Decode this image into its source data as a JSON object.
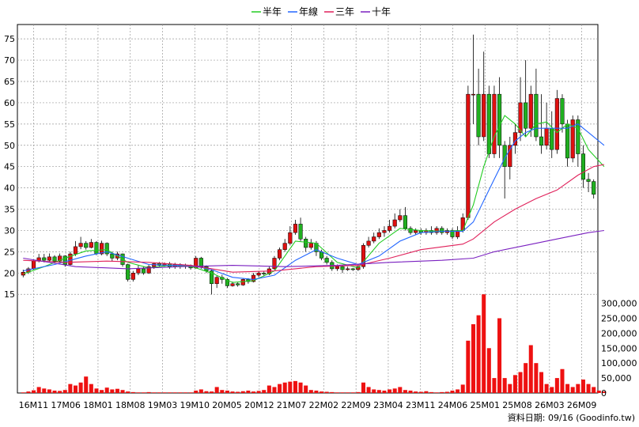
{
  "legend": [
    {
      "label": "半年",
      "color": "#22cc22"
    },
    {
      "label": "年線",
      "color": "#2266ff"
    },
    {
      "label": "三年",
      "color": "#e0205a"
    },
    {
      "label": "十年",
      "color": "#7a20c0"
    }
  ],
  "footer": "資料日期: 09/16  (Goodinfo.tw)",
  "chart_data": {
    "type": "candlestick",
    "x_ticks": [
      "16M11",
      "17M06",
      "18M01",
      "18M08",
      "19M03",
      "19M10",
      "20M05",
      "20M12",
      "21M07",
      "22M02",
      "22M09",
      "23M04",
      "23M11",
      "24M06",
      "25M01",
      "25M08",
      "26M03",
      "26M09"
    ],
    "price_axis": {
      "ticks": [
        15,
        20,
        25,
        30,
        35,
        40,
        45,
        50,
        55,
        60,
        65,
        70,
        75
      ],
      "range": [
        13,
        78
      ]
    },
    "volume_axis": {
      "ticks": [
        "0",
        "50,000",
        "100,000",
        "150,000",
        "200,000",
        "250,000",
        "300,000"
      ],
      "range": [
        0,
        320000
      ]
    },
    "colors": {
      "up": "#e01010",
      "down": "#20b020",
      "volume": "#ee1111"
    },
    "candles": [
      [
        19.5,
        20.2,
        19.0,
        20.8
      ],
      [
        20.2,
        21.0,
        19.8,
        21.4
      ],
      [
        21.0,
        22.8,
        20.8,
        23.2
      ],
      [
        22.8,
        23.6,
        22.5,
        24.5
      ],
      [
        23.6,
        23.0,
        22.5,
        24.5
      ],
      [
        23.0,
        23.8,
        22.7,
        24.6
      ],
      [
        23.8,
        22.8,
        22.5,
        24.2
      ],
      [
        22.8,
        24.0,
        22.4,
        24.6
      ],
      [
        24.0,
        22.0,
        21.5,
        24.2
      ],
      [
        22.0,
        24.5,
        21.8,
        25.0
      ],
      [
        24.5,
        26.2,
        24.0,
        27.5
      ],
      [
        26.2,
        27.0,
        25.6,
        28.5
      ],
      [
        27.0,
        26.0,
        25.5,
        27.5
      ],
      [
        26.0,
        27.2,
        25.8,
        28.0
      ],
      [
        27.2,
        24.5,
        24.2,
        27.5
      ],
      [
        24.5,
        27.0,
        24.2,
        27.6
      ],
      [
        27.0,
        24.5,
        24.0,
        27.2
      ],
      [
        24.5,
        23.5,
        22.8,
        25.0
      ],
      [
        23.5,
        24.5,
        23.0,
        25.0
      ],
      [
        24.5,
        22.0,
        21.5,
        24.6
      ],
      [
        22.0,
        18.5,
        18.0,
        22.2
      ],
      [
        18.5,
        20.0,
        18.0,
        20.5
      ],
      [
        20.0,
        21.0,
        19.5,
        21.8
      ],
      [
        21.0,
        20.0,
        19.6,
        21.5
      ],
      [
        20.0,
        21.5,
        19.8,
        22.0
      ],
      [
        21.5,
        22.2,
        21.0,
        22.5
      ],
      [
        22.2,
        21.8,
        21.5,
        22.6
      ],
      [
        21.8,
        22.2,
        21.5,
        22.5
      ],
      [
        22.2,
        21.5,
        21.0,
        22.6
      ],
      [
        21.5,
        22.0,
        21.0,
        22.4
      ],
      [
        22.0,
        21.5,
        21.0,
        22.3
      ],
      [
        21.5,
        21.8,
        21.0,
        22.2
      ],
      [
        21.8,
        21.2,
        20.8,
        22.0
      ],
      [
        21.2,
        23.5,
        21.0,
        24.0
      ],
      [
        23.5,
        21.5,
        21.0,
        23.8
      ],
      [
        21.5,
        20.5,
        20.0,
        21.8
      ],
      [
        20.5,
        17.5,
        15.0,
        20.8
      ],
      [
        17.5,
        19.0,
        16.5,
        19.5
      ],
      [
        19.0,
        18.5,
        17.5,
        19.6
      ],
      [
        18.5,
        17.0,
        16.5,
        18.8
      ],
      [
        17.0,
        17.5,
        16.8,
        18.0
      ],
      [
        17.5,
        17.2,
        16.8,
        17.8
      ],
      [
        17.2,
        18.5,
        17.0,
        18.8
      ],
      [
        18.5,
        18.0,
        17.5,
        18.8
      ],
      [
        18.0,
        19.5,
        17.8,
        20.0
      ],
      [
        19.5,
        20.0,
        19.0,
        20.5
      ],
      [
        20.0,
        19.8,
        19.2,
        20.5
      ],
      [
        19.8,
        21.0,
        19.5,
        21.5
      ],
      [
        21.0,
        23.5,
        20.8,
        24.0
      ],
      [
        23.5,
        25.5,
        23.0,
        26.0
      ],
      [
        25.5,
        27.0,
        25.0,
        28.0
      ],
      [
        27.0,
        29.5,
        26.5,
        31.0
      ],
      [
        29.5,
        31.5,
        29.0,
        32.5
      ],
      [
        31.5,
        28.0,
        27.5,
        33.0
      ],
      [
        28.0,
        26.0,
        25.0,
        28.5
      ],
      [
        26.0,
        27.0,
        25.5,
        28.0
      ],
      [
        27.0,
        25.0,
        24.0,
        27.5
      ],
      [
        25.0,
        23.5,
        23.0,
        25.5
      ],
      [
        23.5,
        22.5,
        22.0,
        24.0
      ],
      [
        22.5,
        21.0,
        20.5,
        23.0
      ],
      [
        21.0,
        21.5,
        20.5,
        22.0
      ],
      [
        21.5,
        20.8,
        20.0,
        21.8
      ],
      [
        20.8,
        21.0,
        20.5,
        21.5
      ],
      [
        21.0,
        20.8,
        20.5,
        21.2
      ],
      [
        20.8,
        21.5,
        20.5,
        22.0
      ],
      [
        21.5,
        26.5,
        21.0,
        27.0
      ],
      [
        26.5,
        27.5,
        26.0,
        28.5
      ],
      [
        27.5,
        28.5,
        27.0,
        29.5
      ],
      [
        28.5,
        29.5,
        28.0,
        30.5
      ],
      [
        29.5,
        30.0,
        28.5,
        31.0
      ],
      [
        30.0,
        31.0,
        29.5,
        32.5
      ],
      [
        31.0,
        32.5,
        30.5,
        34.0
      ],
      [
        32.5,
        33.5,
        32.0,
        35.0
      ],
      [
        33.5,
        30.5,
        30.0,
        35.5
      ],
      [
        30.5,
        29.5,
        29.0,
        31.0
      ],
      [
        29.5,
        30.0,
        29.0,
        30.5
      ],
      [
        30.0,
        29.5,
        29.0,
        30.5
      ],
      [
        29.5,
        30.0,
        29.0,
        30.5
      ],
      [
        30.0,
        29.5,
        29.0,
        31.0
      ],
      [
        29.5,
        30.5,
        29.0,
        31.0
      ],
      [
        30.5,
        29.5,
        29.0,
        31.0
      ],
      [
        29.5,
        30.0,
        29.0,
        30.5
      ],
      [
        30.0,
        28.5,
        28.0,
        30.5
      ],
      [
        28.5,
        30.0,
        28.0,
        31.0
      ],
      [
        30.0,
        33.0,
        29.5,
        34.0
      ],
      [
        33.0,
        62.0,
        32.5,
        64.0
      ],
      [
        62.0,
        62.0,
        55.0,
        76.0
      ],
      [
        62.0,
        52.0,
        50.0,
        68.0
      ],
      [
        52.0,
        62.0,
        51.0,
        72.0
      ],
      [
        62.0,
        48.0,
        47.0,
        64.0
      ],
      [
        48.0,
        62.0,
        47.0,
        64.0
      ],
      [
        62.0,
        50.0,
        47.0,
        66.0
      ],
      [
        50.0,
        45.0,
        37.5,
        51.0
      ],
      [
        45.0,
        50.0,
        42.0,
        52.0
      ],
      [
        50.0,
        53.0,
        48.0,
        55.0
      ],
      [
        53.0,
        60.0,
        51.0,
        66.0
      ],
      [
        60.0,
        54.0,
        52.0,
        70.0
      ],
      [
        54.0,
        62.0,
        52.0,
        64.0
      ],
      [
        62.0,
        52.0,
        51.0,
        68.0
      ],
      [
        52.0,
        50.0,
        48.0,
        62.0
      ],
      [
        50.0,
        54.0,
        49.0,
        60.0
      ],
      [
        54.0,
        49.0,
        47.0,
        58.0
      ],
      [
        49.0,
        61.0,
        48.0,
        63.0
      ],
      [
        61.0,
        55.0,
        53.0,
        62.0
      ],
      [
        55.0,
        47.0,
        45.0,
        56.0
      ],
      [
        47.0,
        56.0,
        46.0,
        57.0
      ],
      [
        56.0,
        48.0,
        45.0,
        57.0
      ],
      [
        48.0,
        42.0,
        40.0,
        50.0
      ],
      [
        42.0,
        41.5,
        39.0,
        43.5
      ],
      [
        41.5,
        38.5,
        37.5,
        42.0
      ]
    ],
    "volumes": [
      2000,
      5000,
      9000,
      20000,
      15000,
      12000,
      8000,
      7000,
      10000,
      30000,
      25000,
      35000,
      55000,
      30000,
      15000,
      10000,
      18000,
      12000,
      14000,
      10000,
      5000,
      3000,
      2000,
      2000,
      3000,
      2000,
      2000,
      2000,
      2000,
      2000,
      2000,
      2000,
      2000,
      8000,
      12000,
      6000,
      5000,
      20000,
      10000,
      8000,
      5000,
      4000,
      6000,
      8000,
      5000,
      7000,
      10000,
      25000,
      20000,
      30000,
      35000,
      38000,
      40000,
      35000,
      25000,
      10000,
      8000,
      5000,
      4000,
      3000,
      2000,
      2000,
      2000,
      2000,
      3000,
      35000,
      20000,
      12000,
      10000,
      8000,
      12000,
      15000,
      20000,
      10000,
      8000,
      5000,
      4000,
      6000,
      3000,
      2000,
      3000,
      4000,
      8000,
      12000,
      28000,
      175000,
      230000,
      260000,
      330000,
      150000,
      50000,
      250000,
      50000,
      30000,
      60000,
      70000,
      100000,
      160000,
      100000,
      70000,
      30000,
      20000,
      50000,
      80000,
      30000,
      20000,
      30000,
      45000,
      30000,
      20000,
      8000,
      5000
    ],
    "ma_half": [
      [
        0,
        19.8
      ],
      [
        4,
        21.5
      ],
      [
        8,
        23.5
      ],
      [
        12,
        25.2
      ],
      [
        16,
        25.5
      ],
      [
        20,
        22.5
      ],
      [
        24,
        21.2
      ],
      [
        28,
        21.8
      ],
      [
        32,
        21.6
      ],
      [
        36,
        20.0
      ],
      [
        40,
        17.8
      ],
      [
        44,
        18.2
      ],
      [
        48,
        20.5
      ],
      [
        52,
        27.5
      ],
      [
        56,
        27.0
      ],
      [
        60,
        22.5
      ],
      [
        64,
        21.2
      ],
      [
        68,
        27.0
      ],
      [
        72,
        30.5
      ],
      [
        76,
        30.0
      ],
      [
        80,
        29.8
      ],
      [
        84,
        30.0
      ],
      [
        86,
        36.0
      ],
      [
        88,
        45.0
      ],
      [
        90,
        52.0
      ],
      [
        92,
        57.0
      ],
      [
        94,
        55.0
      ],
      [
        96,
        52.0
      ],
      [
        98,
        55.0
      ],
      [
        100,
        55.5
      ],
      [
        102,
        53.0
      ],
      [
        104,
        55.0
      ],
      [
        106,
        54.0
      ],
      [
        108,
        49.0
      ],
      [
        111,
        45.0
      ]
    ],
    "ma_year": [
      [
        0,
        20.5
      ],
      [
        6,
        22.0
      ],
      [
        12,
        24.0
      ],
      [
        16,
        25.0
      ],
      [
        20,
        23.5
      ],
      [
        24,
        22.0
      ],
      [
        28,
        21.8
      ],
      [
        32,
        21.8
      ],
      [
        36,
        20.8
      ],
      [
        40,
        19.0
      ],
      [
        44,
        18.5
      ],
      [
        48,
        19.5
      ],
      [
        52,
        23.0
      ],
      [
        56,
        25.5
      ],
      [
        60,
        23.5
      ],
      [
        64,
        22.0
      ],
      [
        68,
        24.0
      ],
      [
        72,
        27.5
      ],
      [
        76,
        29.5
      ],
      [
        80,
        29.8
      ],
      [
        84,
        29.8
      ],
      [
        86,
        32.0
      ],
      [
        88,
        37.0
      ],
      [
        90,
        42.0
      ],
      [
        92,
        47.0
      ],
      [
        94,
        51.0
      ],
      [
        96,
        53.0
      ],
      [
        98,
        54.0
      ],
      [
        100,
        54.0
      ],
      [
        104,
        54.0
      ],
      [
        106,
        55.0
      ],
      [
        108,
        53.0
      ],
      [
        111,
        50.0
      ]
    ],
    "ma_3yr": [
      [
        0,
        23.0
      ],
      [
        8,
        22.5
      ],
      [
        16,
        22.8
      ],
      [
        24,
        22.5
      ],
      [
        32,
        21.8
      ],
      [
        40,
        20.2
      ],
      [
        48,
        20.5
      ],
      [
        56,
        21.5
      ],
      [
        64,
        21.8
      ],
      [
        70,
        23.5
      ],
      [
        76,
        25.5
      ],
      [
        84,
        26.8
      ],
      [
        86,
        28.0
      ],
      [
        90,
        32.0
      ],
      [
        94,
        35.0
      ],
      [
        98,
        37.5
      ],
      [
        102,
        39.5
      ],
      [
        106,
        43.0
      ],
      [
        109,
        45.0
      ],
      [
        111,
        45.5
      ]
    ],
    "ma_10yr": [
      [
        0,
        23.5
      ],
      [
        10,
        21.5
      ],
      [
        20,
        21.0
      ],
      [
        30,
        21.5
      ],
      [
        40,
        21.8
      ],
      [
        50,
        21.5
      ],
      [
        60,
        21.8
      ],
      [
        70,
        22.5
      ],
      [
        80,
        23.0
      ],
      [
        86,
        23.5
      ],
      [
        90,
        25.0
      ],
      [
        96,
        26.5
      ],
      [
        102,
        28.0
      ],
      [
        108,
        29.5
      ],
      [
        111,
        30.0
      ]
    ]
  }
}
